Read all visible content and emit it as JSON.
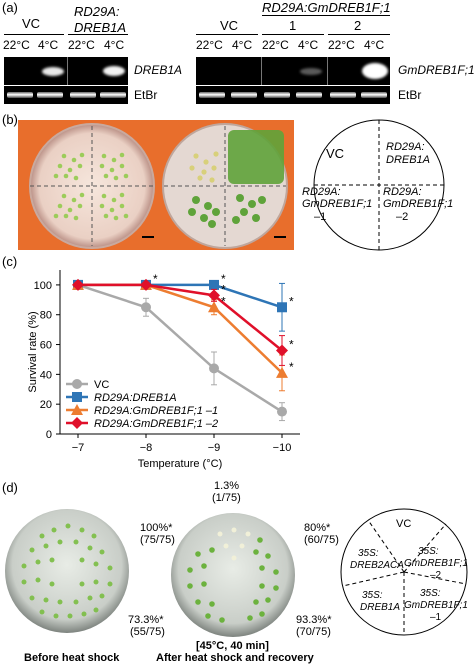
{
  "panel_a": {
    "label": "(a)",
    "left": {
      "title_vc": "VC",
      "title_rd_1": "RD29A:",
      "title_rd_2": "DREB1A",
      "temps": [
        "22°C",
        "4°C",
        "22°C",
        "4°C"
      ],
      "gene": "DREB1A",
      "stain": "EtBr"
    },
    "right": {
      "title": "RD29A:GmDREB1F;1",
      "title_vc": "VC",
      "lines": [
        "1",
        "2"
      ],
      "temps": [
        "22°C",
        "4°C",
        "22°C",
        "4°C",
        "22°C",
        "4°C"
      ],
      "gene": "GmDREB1F;1",
      "stain": "EtBr"
    }
  },
  "panel_b": {
    "label": "(b)",
    "map": {
      "q1": "VC",
      "q2_1": "RD29A:",
      "q2_2": "DREB1A",
      "q3_1": "RD29A:",
      "q3_2": "GmDREB1F;1",
      "q3_3": "–1",
      "q4_1": "RD29A:",
      "q4_2": "GmDREB1F;1",
      "q4_3": "–2"
    }
  },
  "panel_c": {
    "label": "(c)",
    "chart_data": {
      "type": "line",
      "xlabel": "Temperature (°C)",
      "ylabel": "Survival rate (%)",
      "x": [
        -7,
        -8,
        -9,
        -10
      ],
      "x_tick_labels": [
        "−7",
        "−8",
        "−9",
        "−10"
      ],
      "ylim": [
        0,
        110
      ],
      "y_ticks": [
        0,
        20,
        40,
        60,
        80,
        100
      ],
      "legend_position": "lower-left",
      "series": [
        {
          "name": "VC",
          "color": "#a9a9a9",
          "marker": "circle",
          "values": [
            100,
            85,
            44,
            15
          ],
          "err": [
            0,
            6,
            11,
            6
          ]
        },
        {
          "name": "RD29A:DREB1A",
          "color": "#2e75b6",
          "marker": "square",
          "values": [
            100,
            100,
            100,
            85
          ],
          "err": [
            0,
            0,
            0,
            16
          ]
        },
        {
          "name": "RD29A:GmDREB1F;1 –1",
          "color": "#ed7d31",
          "marker": "triangle",
          "values": [
            100,
            100,
            85,
            41
          ],
          "err": [
            0,
            0,
            5,
            12
          ]
        },
        {
          "name": "RD29A:GmDREB1F;1 –2",
          "color": "#e0102a",
          "marker": "diamond",
          "values": [
            100,
            100,
            93,
            56
          ],
          "err": [
            0,
            0,
            4,
            10
          ]
        }
      ],
      "asterisk": "*"
    }
  },
  "panel_d": {
    "label": "(d)",
    "pct_top_1": "1.3%",
    "pct_top_2": "(1/75)",
    "pct_left_1": "100%*",
    "pct_left_2": "(75/75)",
    "pct_right_1": "80%*",
    "pct_right_2": "(60/75)",
    "pct_bl_1": "73.3%*",
    "pct_bl_2": "(55/75)",
    "pct_br_1": "93.3%*",
    "pct_br_2": "(70/75)",
    "condition": "[45°C, 40 min]",
    "caption_left": "Before heat shock",
    "caption_right": "After heat shock and recovery",
    "map": {
      "s1": "VC",
      "s2_1": "35S:",
      "s2_2": "DREB2ACA",
      "s3_1": "35S:",
      "s3_2": "GmDREB1F;1",
      "s3_3": "–2",
      "s4_1": "35S:",
      "s4_2": "DREB1A",
      "s5_1": "35S:",
      "s5_2": "GmDREB1F;1",
      "s5_3": "–1"
    }
  }
}
